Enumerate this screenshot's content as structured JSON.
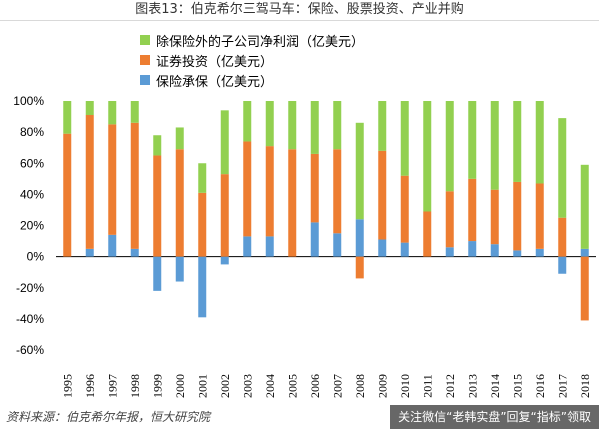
{
  "header": {
    "title": "图表13：伯克希尔三驾马车：保险、股票投资、产业并购"
  },
  "legend": [
    {
      "label": "除保险外的子公司净利润（亿美元）",
      "color": "#92d050"
    },
    {
      "label": "证券投资（亿美元）",
      "color": "#ed7d31"
    },
    {
      "label": "保险承保（亿美元）",
      "color": "#5b9bd5"
    }
  ],
  "footer": {
    "source": "资料来源：伯克希尔年报，恒大研究院",
    "promo": "关注微信“老韩实盘”回复“指标”领取"
  },
  "chart_data": {
    "type": "bar",
    "stacked": true,
    "categories": [
      "1995",
      "1996",
      "1997",
      "1998",
      "1999",
      "2000",
      "2001",
      "2002",
      "2003",
      "2004",
      "2005",
      "2006",
      "2007",
      "2008",
      "2009",
      "2010",
      "2011",
      "2012",
      "2013",
      "2014",
      "2015",
      "2016",
      "2017",
      "2018"
    ],
    "series": [
      {
        "name": "保险承保（亿美元）",
        "color": "#5b9bd5",
        "values": [
          0,
          5,
          14,
          5,
          -22,
          -16,
          -39,
          -5,
          13,
          13,
          0,
          22,
          15,
          24,
          11,
          9,
          0,
          6,
          10,
          8,
          4,
          5,
          -11,
          5
        ]
      },
      {
        "name": "证券投资（亿美元）",
        "color": "#ed7d31",
        "values": [
          79,
          86,
          71,
          81,
          65,
          69,
          41,
          53,
          61,
          58,
          69,
          44,
          54,
          -14,
          57,
          43,
          29,
          36,
          40,
          35,
          44,
          42,
          25,
          -41
        ]
      },
      {
        "name": "除保险外的子公司净利润（亿美元）",
        "color": "#92d050",
        "values": [
          21,
          9,
          15,
          14,
          13,
          14,
          19,
          41,
          26,
          29,
          31,
          34,
          31,
          62,
          32,
          48,
          71,
          58,
          50,
          57,
          52,
          53,
          64,
          54
        ]
      }
    ],
    "yticks": [
      "100%",
      "80%",
      "60%",
      "40%",
      "20%",
      "0%",
      "-20%",
      "-40%",
      "-60%"
    ],
    "ylim": [
      -60,
      100
    ],
    "unit": "%"
  }
}
